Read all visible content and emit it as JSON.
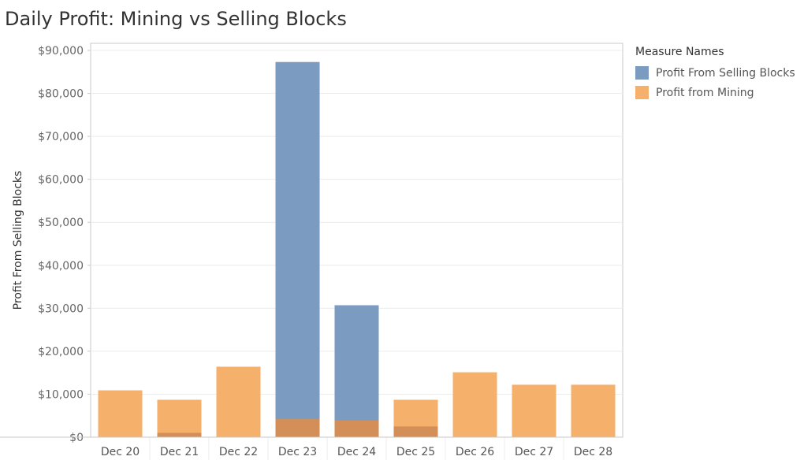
{
  "colors": {
    "selling": "#7b9bc1",
    "mining": "#f5b06c",
    "overlap": "#d38f57",
    "grid": "#ececec",
    "axis": "#c8c8c8"
  },
  "legend": {
    "title": "Measure Names",
    "items": [
      {
        "label": "Profit From Selling Blocks",
        "color": "#7b9bc1"
      },
      {
        "label": "Profit from Mining",
        "color": "#f5b06c"
      }
    ]
  },
  "chart_data": {
    "type": "bar",
    "title": "Daily Profit: Mining vs Selling Blocks",
    "xlabel": "",
    "ylabel": "Profit From Selling Blocks",
    "categories": [
      "Dec 20",
      "Dec 21",
      "Dec 22",
      "Dec 23",
      "Dec 24",
      "Dec 25",
      "Dec 26",
      "Dec 27",
      "Dec 28"
    ],
    "series": [
      {
        "name": "Profit From Selling Blocks",
        "values": [
          0,
          1000,
          0,
          4200,
          3900,
          2500,
          0,
          0,
          0
        ]
      },
      {
        "name": "Profit from Mining",
        "values": [
          10900,
          8700,
          16400,
          4200,
          3900,
          8700,
          15100,
          12200,
          12200
        ]
      }
    ],
    "selling_tall": [
      null,
      null,
      null,
      87300,
      30700,
      null,
      null,
      null,
      null
    ],
    "ylim": [
      0,
      90000
    ],
    "yticks": [
      0,
      10000,
      20000,
      30000,
      40000,
      50000,
      60000,
      70000,
      80000,
      90000
    ],
    "ytick_labels": [
      "$0",
      "$10,000",
      "$20,000",
      "$30,000",
      "$40,000",
      "$50,000",
      "$60,000",
      "$70,000",
      "$80,000",
      "$90,000"
    ],
    "grid": true,
    "legend_position": "right"
  }
}
